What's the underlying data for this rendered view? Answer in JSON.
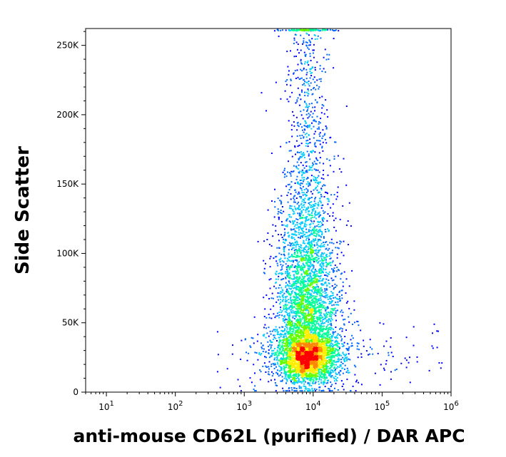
{
  "chart_data": {
    "type": "scatter",
    "subtype": "flow cytometry density dot plot",
    "title": "",
    "xlabel": "anti-mouse CD62L (purified) / DAR APC",
    "ylabel": "Side Scatter",
    "x_scale": "log",
    "xlim": [
      5,
      1000000
    ],
    "ylim": [
      0,
      262144
    ],
    "x_ticks": [
      {
        "value": 10,
        "base": "10",
        "exp": "1"
      },
      {
        "value": 100,
        "base": "10",
        "exp": "2"
      },
      {
        "value": 1000,
        "base": "10",
        "exp": "3"
      },
      {
        "value": 10000,
        "base": "10",
        "exp": "4"
      },
      {
        "value": 100000,
        "base": "10",
        "exp": "5"
      },
      {
        "value": 1000000,
        "base": "10",
        "exp": "6"
      }
    ],
    "y_ticks": [
      {
        "value": 0,
        "label": "0"
      },
      {
        "value": 50000,
        "label": "50K"
      },
      {
        "value": 100000,
        "label": "100K"
      },
      {
        "value": 150000,
        "label": "150K"
      },
      {
        "value": 200000,
        "label": "200K"
      },
      {
        "value": 250000,
        "label": "250K"
      }
    ],
    "population": {
      "peak_x": 8000,
      "peak_y": 25000,
      "x_range": [
        400,
        800000
      ],
      "y_range": [
        0,
        262144
      ]
    },
    "density_colors": [
      "#0000ff",
      "#0066ff",
      "#00ccff",
      "#00ff99",
      "#66ff00",
      "#ffee00",
      "#ff8800",
      "#ff0000"
    ],
    "grid": false,
    "legend": "none"
  }
}
